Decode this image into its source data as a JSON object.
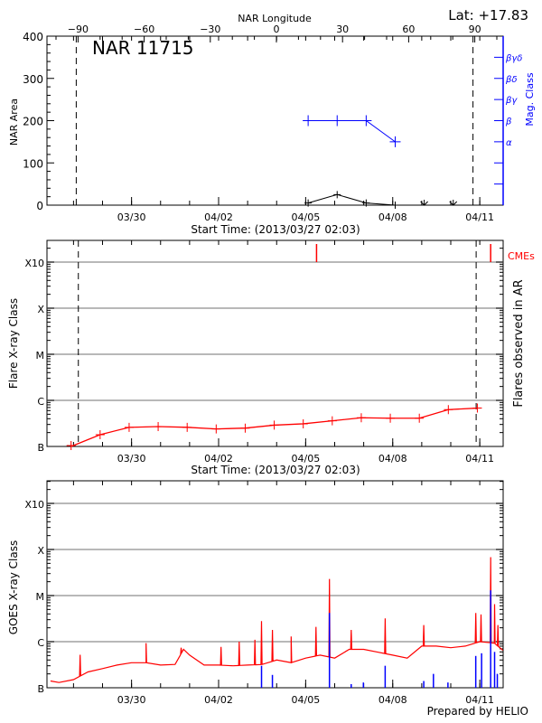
{
  "header": {
    "lat_label": "Lat: +17.83"
  },
  "colors": {
    "axes": "#000000",
    "mag_class": "#0000ff",
    "flares": "#ff0000",
    "goes_long": "#ff0000",
    "goes_short": "#0000ff",
    "grid": "#a0a0a0"
  },
  "chart_data": [
    {
      "type": "line",
      "panel": "top",
      "title": "NAR 11715",
      "ylabel": "NAR Area",
      "xlabel": "Start Time: (2013/03/27 02:03)",
      "x_top_label": "NAR Longitude",
      "y2label": "Mag. Class",
      "xlim": [
        "03/27 02:03",
        "04/11 19:20"
      ],
      "ylim": [
        0,
        400
      ],
      "yticks": [
        "0",
        "100",
        "200",
        "300",
        "400"
      ],
      "xticks": [
        "03/30",
        "04/02",
        "04/05",
        "04/08",
        "04/11"
      ],
      "x_top_ticks": [
        "-90",
        "-60",
        "-30",
        "0",
        "30",
        "60",
        "90"
      ],
      "y2ticks": [
        "",
        "",
        "α",
        "β",
        "βγ",
        "βδ",
        "βγδ"
      ],
      "limb_longitudes": [
        -90,
        90
      ],
      "series": [
        {
          "name": "NAR Area",
          "x": [
            "04/05 02:03",
            "04/06 02:03",
            "04/07 02:03",
            "04/08 02:03",
            "04/09 02:03",
            "04/10 02:03"
          ],
          "values": [
            5,
            25,
            5,
            0,
            0,
            0
          ],
          "below_marker": [
            false,
            false,
            false,
            false,
            true,
            true
          ]
        },
        {
          "name": "Mag. Class",
          "x": [
            "04/05 02:03",
            "04/06 02:03",
            "04/07 02:03",
            "04/08 02:03"
          ],
          "values": [
            "β",
            "β",
            "β",
            "α"
          ]
        }
      ]
    },
    {
      "type": "line",
      "panel": "middle",
      "ylabel": "Flare X-ray Class",
      "y2label": "Flares observed in AR",
      "xlabel": "Start Time: (2013/03/27 02:03)",
      "cme_label": "CMEs",
      "scale": "log",
      "ylim": [
        "B1.0",
        "X30"
      ],
      "yticks": [
        "B",
        "C",
        "M",
        "X",
        "X10"
      ],
      "xticks": [
        "03/30",
        "04/02",
        "04/05",
        "04/08",
        "04/11"
      ],
      "grid": true,
      "limb_times": [
        "03/28 04:00",
        "04/10 21:00"
      ],
      "series": [
        {
          "x": [
            "03/27 22:00",
            "03/28 22:00",
            "03/29 22:00",
            "03/30 22:00",
            "03/31 22:00",
            "04/01 22:00",
            "04/02 22:00",
            "04/03 22:00",
            "04/04 22:00",
            "04/05 22:00",
            "04/06 22:00",
            "04/07 22:00",
            "04/08 22:00",
            "04/09 22:00",
            "04/10 22:00"
          ],
          "values": [
            "B1.0",
            "B1.8",
            "B2.6",
            "B2.7",
            "B2.6",
            "B2.4",
            "B2.5",
            "B2.9",
            "B3.1",
            "B3.6",
            "B4.2",
            "B4.1",
            "B4.1",
            "B6.3",
            "B6.8"
          ]
        }
      ],
      "cmes": [
        "04/05 09:00",
        "04/11 09:00"
      ]
    },
    {
      "type": "line",
      "panel": "bottom",
      "ylabel": "GOES X-ray Class",
      "footer": "Prepared by HELIO",
      "scale": "log",
      "ylim": [
        "B1.0",
        "X30"
      ],
      "yticks": [
        "B",
        "C",
        "M",
        "X",
        "X10"
      ],
      "xticks": [
        "03/30",
        "04/02",
        "04/05",
        "04/08",
        "04/11"
      ],
      "grid": true,
      "series": [
        {
          "name": "long",
          "x": [
            "03/27 05:00",
            "03/27 12:00",
            "03/28 00:00",
            "03/28 12:00",
            "03/29 00:00",
            "03/29 12:00",
            "03/30 00:00",
            "03/30 12:00",
            "03/31 00:00",
            "03/31 12:00",
            "03/31 19:00",
            "04/01 00:00",
            "04/01 12:00",
            "04/02 00:00",
            "04/02 12:00",
            "04/03 00:00",
            "04/03 12:00",
            "04/04 00:00",
            "04/04 12:00",
            "04/05 00:00",
            "04/05 12:00",
            "04/06 00:00",
            "04/06 12:00",
            "04/07 00:00",
            "04/07 12:00",
            "04/08 00:00",
            "04/08 12:00",
            "04/09 00:00",
            "04/09 12:00",
            "04/10 00:00",
            "04/10 12:00",
            "04/11 00:00",
            "04/11 12:00",
            "04/11 19:00"
          ],
          "values": [
            "B1.4",
            "B1.3",
            "B1.5",
            "B2.2",
            "B2.6",
            "B3.1",
            "B3.5",
            "B3.5",
            "B3.1",
            "B3.2",
            "B6.8",
            "B5.1",
            "B3.1",
            "B3.1",
            "B3.0",
            "B3.1",
            "B3.2",
            "B4.0",
            "B3.5",
            "B4.4",
            "B5.1",
            "B4.4",
            "B6.8",
            "B6.8",
            "B5.9",
            "B5.1",
            "B4.4",
            "B8.0",
            "B8.0",
            "B7.4",
            "B8.0",
            "C1.0",
            "B9.3",
            "B6.5"
          ],
          "peaks": {
            "x": [
              "03/28 05:30",
              "03/30 12:00",
              "03/31 17:00",
              "04/02 02:00",
              "04/02 17:00",
              "04/03 06:00",
              "04/03 11:30",
              "04/03 20:30",
              "04/04 12:00",
              "04/05 08:30",
              "04/05 19:40",
              "04/06 13:40",
              "04/07 17:45",
              "04/09 01:40",
              "04/10 20:40",
              "04/11 01:00",
              "04/11 09:00",
              "04/11 12:15",
              "04/11 15:00"
            ],
            "values": [
              "B5.2",
              "B9.3",
              "B7.4",
              "B7.7",
              "C1.0",
              "C1.1",
              "C2.8",
              "C1.8",
              "C1.3",
              "C2.1",
              "M2.3",
              "C1.8",
              "C3.2",
              "C2.3",
              "C4.2",
              "C3.9",
              "M6.8",
              "C6.5",
              "C2.3"
            ]
          }
        },
        {
          "name": "short",
          "x": [
            "04/03 11:30",
            "04/03 20:30",
            "04/05 19:40",
            "04/06 13:40",
            "04/06 23:45",
            "04/07 17:45",
            "04/09 01:40",
            "04/09 09:40",
            "04/09 21:40",
            "04/10 20:40",
            "04/11 01:30",
            "04/11 09:00",
            "04/11 12:15",
            "04/11 14:30"
          ],
          "values": [
            "B3.0",
            "B1.9",
            "C4.2",
            "B1.2",
            "B1.3",
            "B3.0",
            "B1.4",
            "B2.0",
            "B1.3",
            "B4.9",
            "B5.6",
            "M1.3",
            "B6.0",
            "B2.0"
          ]
        }
      ]
    }
  ]
}
